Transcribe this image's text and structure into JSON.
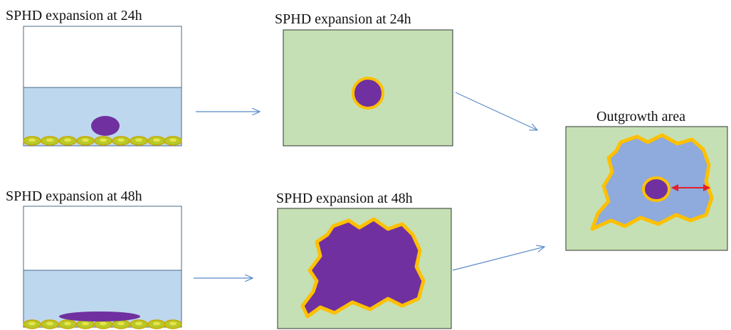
{
  "panels": [
    {
      "label": "SPHD expansion at 24h"
    },
    {
      "label": "SPHD expansion at 24h"
    },
    {
      "label": "SPHD expansion at 48h"
    },
    {
      "label": "SPHD expansion at 48h"
    },
    {
      "label": "Outgrowth area"
    }
  ]
}
